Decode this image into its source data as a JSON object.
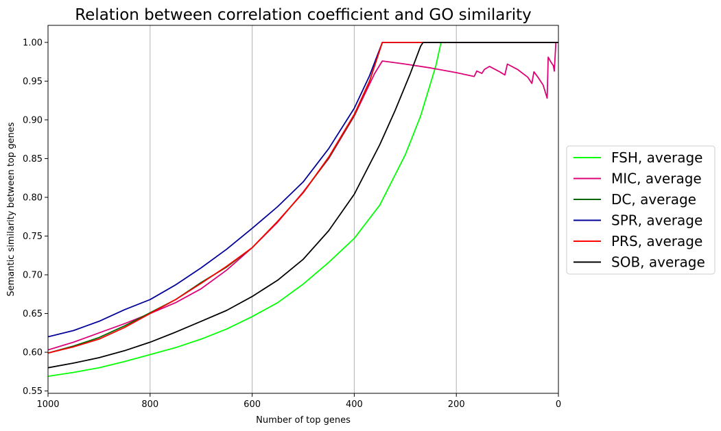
{
  "chart_data": {
    "type": "line",
    "title": "Relation between correlation coefficient and GO similarity",
    "xlabel": "Number of top genes",
    "ylabel": "Semantic similarity between top genes",
    "xlim": [
      1000,
      0
    ],
    "ylim": [
      0.547,
      1.022
    ],
    "x_ticks": [
      1000,
      800,
      600,
      400,
      200,
      0
    ],
    "x_tick_labels": [
      "1000",
      "800",
      "600",
      "400",
      "200",
      "0"
    ],
    "y_ticks": [
      0.55,
      0.6,
      0.65,
      0.7,
      0.75,
      0.8,
      0.85,
      0.9,
      0.95,
      1.0
    ],
    "y_tick_labels": [
      "0.55",
      "0.60",
      "0.65",
      "0.70",
      "0.75",
      "0.80",
      "0.85",
      "0.90",
      "0.95",
      "1.00"
    ],
    "grid": "vertical only",
    "legend_position": "outside right, centered",
    "series": [
      {
        "name": "FSH, average",
        "color": "#00ff00",
        "points": [
          [
            1000,
            0.569
          ],
          [
            950,
            0.574
          ],
          [
            900,
            0.58
          ],
          [
            850,
            0.588
          ],
          [
            800,
            0.597
          ],
          [
            750,
            0.606
          ],
          [
            700,
            0.617
          ],
          [
            650,
            0.63
          ],
          [
            600,
            0.646
          ],
          [
            550,
            0.664
          ],
          [
            500,
            0.688
          ],
          [
            450,
            0.716
          ],
          [
            400,
            0.747
          ],
          [
            350,
            0.79
          ],
          [
            300,
            0.855
          ],
          [
            270,
            0.905
          ],
          [
            240,
            0.97
          ],
          [
            230,
            1.0
          ],
          [
            0,
            1.0
          ]
        ]
      },
      {
        "name": "MIC, average",
        "color": "#dd0077",
        "points": [
          [
            1000,
            0.603
          ],
          [
            950,
            0.613
          ],
          [
            900,
            0.625
          ],
          [
            850,
            0.637
          ],
          [
            800,
            0.65
          ],
          [
            750,
            0.664
          ],
          [
            700,
            0.682
          ],
          [
            650,
            0.706
          ],
          [
            600,
            0.735
          ],
          [
            550,
            0.768
          ],
          [
            500,
            0.807
          ],
          [
            450,
            0.85
          ],
          [
            400,
            0.905
          ],
          [
            360,
            0.96
          ],
          [
            345,
            0.976
          ],
          [
            300,
            0.972
          ],
          [
            250,
            0.967
          ],
          [
            200,
            0.961
          ],
          [
            165,
            0.956
          ],
          [
            160,
            0.963
          ],
          [
            150,
            0.96
          ],
          [
            145,
            0.965
          ],
          [
            135,
            0.969
          ],
          [
            115,
            0.962
          ],
          [
            105,
            0.958
          ],
          [
            100,
            0.972
          ],
          [
            80,
            0.965
          ],
          [
            60,
            0.955
          ],
          [
            52,
            0.947
          ],
          [
            48,
            0.962
          ],
          [
            40,
            0.955
          ],
          [
            30,
            0.945
          ],
          [
            22,
            0.928
          ],
          [
            20,
            0.981
          ],
          [
            15,
            0.975
          ],
          [
            10,
            0.97
          ],
          [
            8,
            0.963
          ],
          [
            5,
            1.0
          ],
          [
            0,
            1.0
          ]
        ]
      },
      {
        "name": "DC, average",
        "color": "#006600",
        "points": [
          [
            1000,
            0.599
          ],
          [
            950,
            0.608
          ],
          [
            900,
            0.619
          ],
          [
            850,
            0.634
          ],
          [
            800,
            0.651
          ],
          [
            750,
            0.668
          ],
          [
            700,
            0.69
          ],
          [
            650,
            0.71
          ],
          [
            600,
            0.735
          ],
          [
            550,
            0.769
          ],
          [
            500,
            0.806
          ],
          [
            450,
            0.851
          ],
          [
            400,
            0.906
          ],
          [
            370,
            0.95
          ],
          [
            345,
            1.0
          ],
          [
            0,
            1.0
          ]
        ]
      },
      {
        "name": "SPR, average",
        "color": "#000099",
        "points": [
          [
            1000,
            0.62
          ],
          [
            950,
            0.628
          ],
          [
            900,
            0.64
          ],
          [
            850,
            0.655
          ],
          [
            800,
            0.668
          ],
          [
            750,
            0.687
          ],
          [
            700,
            0.709
          ],
          [
            650,
            0.733
          ],
          [
            600,
            0.76
          ],
          [
            550,
            0.788
          ],
          [
            500,
            0.82
          ],
          [
            450,
            0.863
          ],
          [
            400,
            0.915
          ],
          [
            370,
            0.957
          ],
          [
            345,
            1.0
          ],
          [
            0,
            1.0
          ]
        ]
      },
      {
        "name": "PRS, average",
        "color": "#ff0000",
        "points": [
          [
            1000,
            0.599
          ],
          [
            950,
            0.607
          ],
          [
            900,
            0.617
          ],
          [
            850,
            0.632
          ],
          [
            800,
            0.65
          ],
          [
            750,
            0.668
          ],
          [
            700,
            0.689
          ],
          [
            650,
            0.711
          ],
          [
            600,
            0.735
          ],
          [
            550,
            0.769
          ],
          [
            500,
            0.806
          ],
          [
            450,
            0.852
          ],
          [
            400,
            0.907
          ],
          [
            370,
            0.95
          ],
          [
            345,
            1.0
          ],
          [
            0,
            1.0
          ]
        ]
      },
      {
        "name": "SOB, average",
        "color": "#000000",
        "points": [
          [
            1000,
            0.58
          ],
          [
            950,
            0.586
          ],
          [
            900,
            0.593
          ],
          [
            850,
            0.602
          ],
          [
            800,
            0.613
          ],
          [
            750,
            0.626
          ],
          [
            700,
            0.64
          ],
          [
            650,
            0.654
          ],
          [
            600,
            0.672
          ],
          [
            550,
            0.693
          ],
          [
            500,
            0.72
          ],
          [
            450,
            0.757
          ],
          [
            400,
            0.804
          ],
          [
            350,
            0.868
          ],
          [
            320,
            0.912
          ],
          [
            290,
            0.96
          ],
          [
            270,
            0.995
          ],
          [
            265,
            1.0
          ],
          [
            0,
            1.0
          ]
        ]
      }
    ]
  }
}
